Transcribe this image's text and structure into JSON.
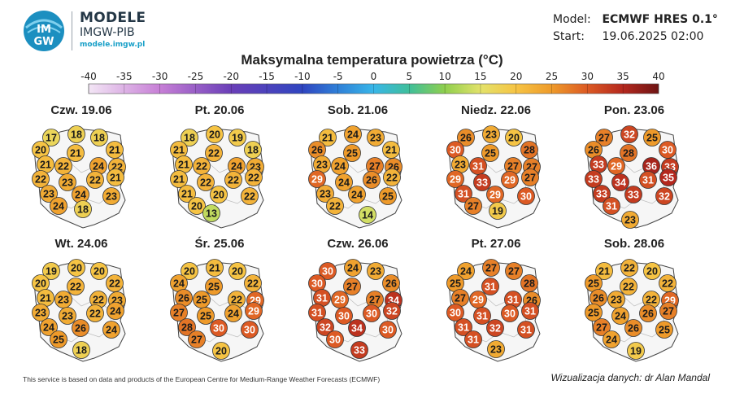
{
  "logo": {
    "title": "MODELE",
    "subtitle": "IMGW-PIB",
    "url": "modele.imgw.pl",
    "mark_top": "IM",
    "mark_bottom": "GW"
  },
  "model_info": {
    "model_label": "Model:",
    "model_value": "ECMWF HRES 0.1°",
    "start_label": "Start:",
    "start_value": "19.06.2025 02:00"
  },
  "title": "Maksymalna temperatura powietrza (°C)",
  "scale": {
    "ticks": [
      "-40",
      "-35",
      "-30",
      "-25",
      "-20",
      "-15",
      "-10",
      "-5",
      "0",
      "5",
      "10",
      "15",
      "20",
      "25",
      "30",
      "35",
      "40"
    ],
    "stops": [
      {
        "t": -40,
        "color": "#f3e6f5"
      },
      {
        "t": -30,
        "color": "#c77fd6"
      },
      {
        "t": -20,
        "color": "#6a3fb8"
      },
      {
        "t": -10,
        "color": "#2f45c0"
      },
      {
        "t": -5,
        "color": "#2f80d8"
      },
      {
        "t": 0,
        "color": "#38b6e8"
      },
      {
        "t": 5,
        "color": "#3fbf9a"
      },
      {
        "t": 10,
        "color": "#8fcf4e"
      },
      {
        "t": 15,
        "color": "#e3e26a"
      },
      {
        "t": 20,
        "color": "#f6c444"
      },
      {
        "t": 25,
        "color": "#ee9a2a"
      },
      {
        "t": 30,
        "color": "#dc5a24"
      },
      {
        "t": 35,
        "color": "#b4281e"
      },
      {
        "t": 40,
        "color": "#6e1414"
      }
    ]
  },
  "days": [
    {
      "label": "Czw. 19.06",
      "values": [
        "17",
        "18",
        "18",
        "20",
        "21",
        "21",
        "21",
        "22",
        "24",
        "22",
        "22",
        "23",
        "22",
        "21",
        "23",
        "24",
        "23",
        "24",
        "18"
      ]
    },
    {
      "label": "Pt. 20.06",
      "values": [
        "18",
        "20",
        "19",
        "21",
        "18",
        "22",
        "21",
        "22",
        "24",
        "23",
        "21",
        "22",
        "22",
        "22",
        "21",
        "20",
        "22",
        "20",
        "13"
      ]
    },
    {
      "label": "Sob. 21.06",
      "values": [
        "21",
        "24",
        "23",
        "26",
        "21",
        "25",
        "23",
        "24",
        "27",
        "26",
        "29",
        "24",
        "26",
        "22",
        "23",
        "24",
        "25",
        "22",
        "14"
      ]
    },
    {
      "label": "Niedz. 22.06",
      "values": [
        "26",
        "23",
        "20",
        "30",
        "28",
        "25",
        "23",
        "31",
        "27",
        "27",
        "29",
        "33",
        "29",
        "27",
        "31",
        "29",
        "30",
        "27",
        "19"
      ]
    },
    {
      "label": "Pon. 23.06",
      "values": [
        "27",
        "32",
        "25",
        "26",
        "30",
        "28",
        "33",
        "29",
        "36",
        "33",
        "33",
        "34",
        "31",
        "35",
        "33",
        "33",
        "32",
        "31",
        "23"
      ]
    },
    {
      "label": "Wt. 24.06",
      "values": [
        "19",
        "20",
        "20",
        "20",
        "22",
        "22",
        "21",
        "23",
        "22",
        "23",
        "23",
        "23",
        "22",
        "24",
        "24",
        "26",
        "24",
        "25",
        "18"
      ]
    },
    {
      "label": "Śr. 25.06",
      "values": [
        "20",
        "21",
        "20",
        "24",
        "22",
        "25",
        "26",
        "25",
        "22",
        "29",
        "27",
        "25",
        "24",
        "29",
        "28",
        "30",
        "30",
        "27",
        "20"
      ]
    },
    {
      "label": "Czw. 26.06",
      "values": [
        "30",
        "24",
        "23",
        "30",
        "26",
        "27",
        "31",
        "29",
        "27",
        "34",
        "31",
        "30",
        "30",
        "32",
        "32",
        "34",
        "30",
        "30",
        "33"
      ]
    },
    {
      "label": "Pt. 27.06",
      "values": [
        "24",
        "27",
        "27",
        "25",
        "28",
        "31",
        "27",
        "29",
        "31",
        "26",
        "30",
        "31",
        "30",
        "31",
        "31",
        "32",
        "31",
        "31",
        "23"
      ]
    },
    {
      "label": "Sob. 28.06",
      "values": [
        "21",
        "22",
        "20",
        "25",
        "22",
        "22",
        "26",
        "23",
        "22",
        "29",
        "25",
        "24",
        "26",
        "27",
        "27",
        "26",
        "25",
        "24",
        "19"
      ]
    }
  ],
  "footer": {
    "left": "This service is based on data and products of the European Centre for Medium-Range Weather Forecasts (ECMWF)",
    "right": "Wizualizacja danych: dr Alan Mandal"
  }
}
